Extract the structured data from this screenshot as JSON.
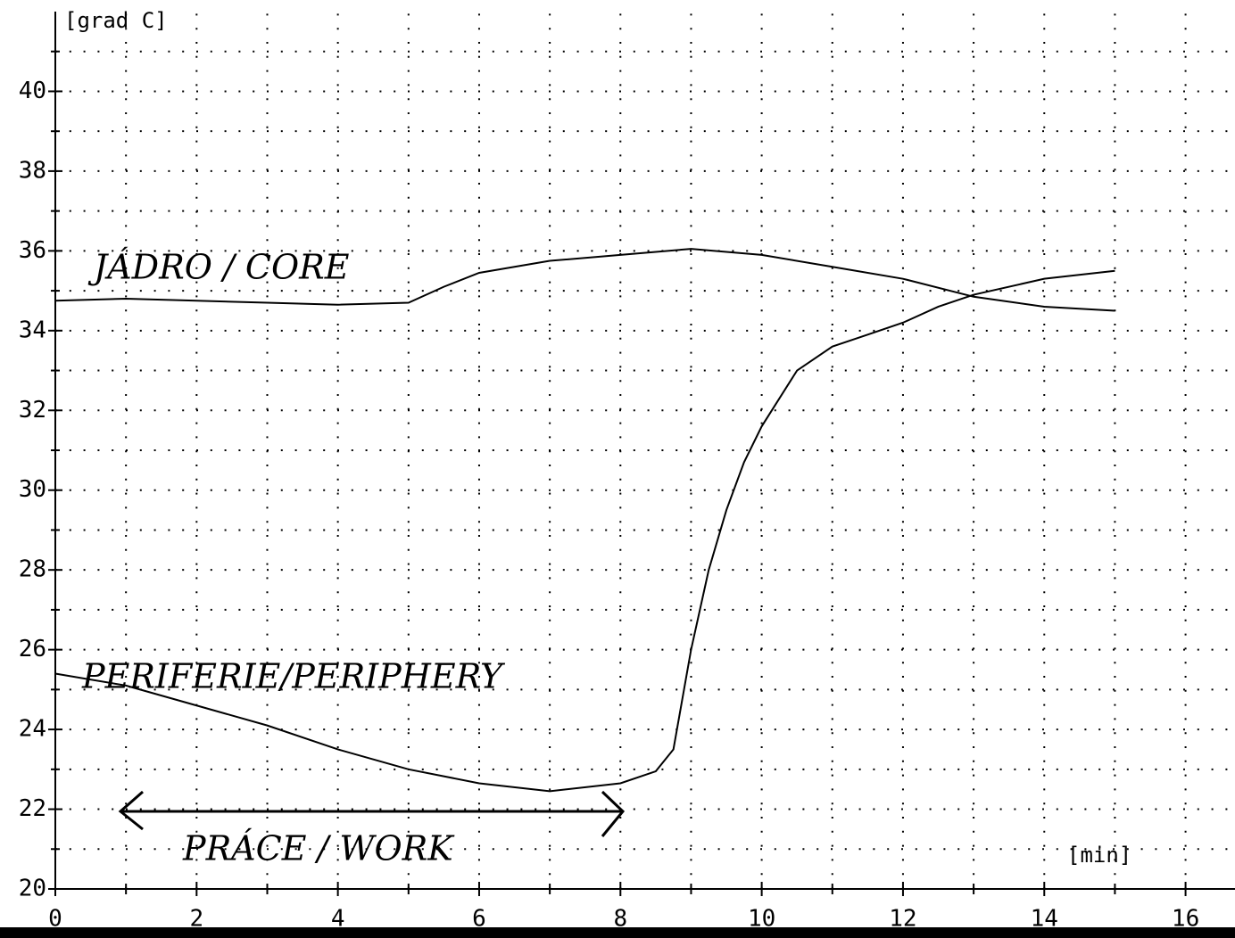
{
  "chart_data": {
    "type": "line",
    "x_label": "[min]",
    "y_label": "[grad C]",
    "annotations": [
      "JÁDRO / CORE",
      "PERIFERIE/PERIPHERY",
      "PRÁCE / WORK"
    ],
    "xlim": [
      0,
      16.7
    ],
    "ylim": [
      20,
      42
    ],
    "xticks": [
      0,
      2,
      4,
      6,
      8,
      10,
      12,
      14,
      16
    ],
    "yticks": [
      20,
      22,
      24,
      26,
      28,
      30,
      32,
      34,
      36,
      38,
      40
    ],
    "xminor": [
      1,
      3,
      5,
      7,
      9,
      11,
      13,
      15
    ],
    "yminor": [
      21,
      23,
      25,
      27,
      29,
      31,
      33,
      35,
      37,
      39,
      41
    ],
    "grid": true,
    "series": [
      {
        "color": "#000000",
        "x": [
          0,
          1,
          2,
          3,
          4,
          5,
          5.5,
          6,
          7,
          8,
          9,
          10,
          11,
          12,
          13,
          14,
          15
        ],
        "values": [
          34.75,
          34.8,
          34.75,
          34.7,
          34.65,
          34.7,
          35.1,
          35.45,
          35.75,
          35.9,
          36.05,
          35.9,
          35.6,
          35.3,
          34.85,
          34.6,
          34.5
        ]
      },
      {
        "color": "#000000",
        "x": [
          0,
          1,
          2,
          3,
          4,
          5,
          6,
          7,
          8,
          8.5,
          8.75,
          9,
          9.25,
          9.5,
          9.75,
          10,
          10.5,
          11,
          11.5,
          12,
          12.5,
          13,
          14,
          15
        ],
        "values": [
          25.4,
          25.1,
          24.6,
          24.1,
          23.5,
          23.0,
          22.65,
          22.45,
          22.65,
          22.95,
          23.5,
          26.0,
          28.0,
          29.5,
          30.7,
          31.6,
          33.0,
          33.6,
          33.9,
          34.2,
          34.6,
          34.9,
          35.3,
          35.5
        ]
      }
    ]
  }
}
